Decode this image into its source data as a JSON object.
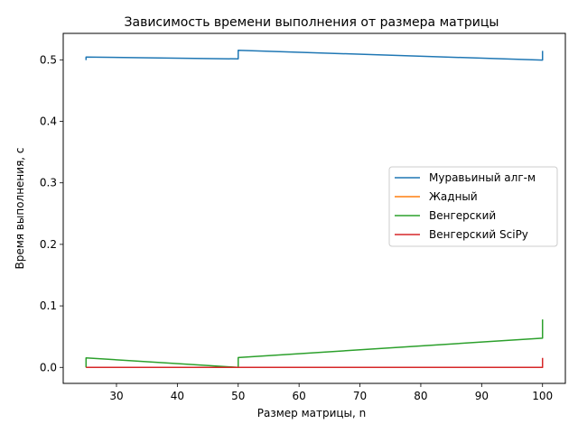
{
  "chart_data": {
    "type": "line",
    "title": "Зависимость времени выполнения от размера матрицы",
    "xlabel": "Размер матрицы, n",
    "ylabel": "Время выполнения, с",
    "xlim": [
      21.25,
      103.75
    ],
    "ylim": [
      -0.026,
      0.543
    ],
    "xticks": [
      30,
      40,
      50,
      60,
      70,
      80,
      90,
      100
    ],
    "yticks": [
      0.0,
      0.1,
      0.2,
      0.3,
      0.4,
      0.5
    ],
    "ytick_labels": [
      "0.0",
      "0.1",
      "0.2",
      "0.3",
      "0.4",
      "0.5"
    ],
    "grid": false,
    "legend_position": "center-right",
    "series": [
      {
        "name": "Муравьиный алг-м",
        "color": "#1f77b4",
        "points": [
          [
            25,
            0.4995
          ],
          [
            25,
            0.5045
          ],
          [
            50,
            0.5015
          ],
          [
            50,
            0.5155
          ],
          [
            100,
            0.4995
          ],
          [
            100,
            0.5145
          ]
        ]
      },
      {
        "name": "Жадный",
        "color": "#ff7f0e",
        "points": [
          [
            25,
            0.0
          ],
          [
            25,
            0.0
          ],
          [
            50,
            0.0
          ],
          [
            50,
            0.0
          ],
          [
            100,
            0.0
          ],
          [
            100,
            0.0
          ]
        ]
      },
      {
        "name": "Венгерский",
        "color": "#2ca02c",
        "points": [
          [
            25,
            0.0
          ],
          [
            25,
            0.0155
          ],
          [
            50,
            0.0
          ],
          [
            50,
            0.016
          ],
          [
            100,
            0.0475
          ],
          [
            100,
            0.078
          ]
        ]
      },
      {
        "name": "Венгерский SciPy",
        "color": "#d62728",
        "points": [
          [
            25,
            0.0
          ],
          [
            25,
            0.0
          ],
          [
            50,
            0.0
          ],
          [
            50,
            0.0
          ],
          [
            100,
            0.0
          ],
          [
            100,
            0.0155
          ]
        ]
      }
    ]
  }
}
